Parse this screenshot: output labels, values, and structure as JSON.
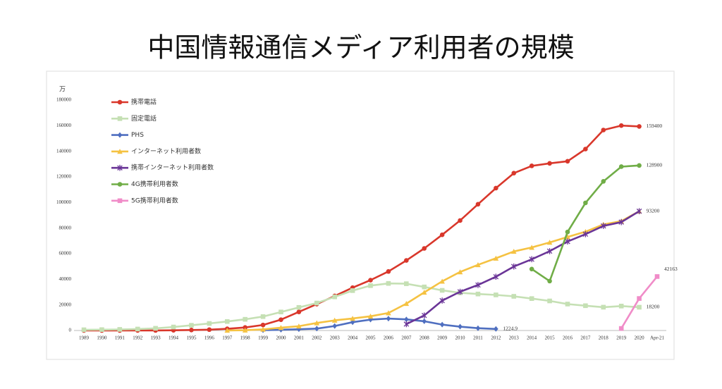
{
  "chart_data": {
    "type": "line",
    "title": "中国情報通信メディア利用者の規模",
    "y_unit": "万",
    "categories": [
      "1989",
      "1990",
      "1991",
      "1992",
      "1993",
      "1994",
      "1995",
      "1996",
      "1997",
      "1998",
      "1999",
      "2000",
      "2001",
      "2002",
      "2003",
      "2004",
      "2005",
      "2006",
      "2007",
      "2008",
      "2009",
      "2010",
      "2011",
      "2012",
      "2013",
      "2014",
      "2015",
      "2016",
      "2017",
      "2018",
      "2019",
      "2020",
      "Apr-21"
    ],
    "ylim": [
      0,
      180000
    ],
    "yticks": [
      0,
      20000,
      40000,
      60000,
      80000,
      100000,
      120000,
      140000,
      160000,
      180000
    ],
    "grid": false,
    "legend": "top-left",
    "series": [
      {
        "name": "携帯電話",
        "color": "#d9372b",
        "marker": "circle",
        "end_label": true,
        "values": [
          0,
          2,
          5,
          18,
          64,
          157,
          363,
          685,
          1323,
          2386,
          4330,
          8453,
          14522,
          20601,
          26995,
          33482,
          39341,
          46108,
          54731,
          64124,
          74738,
          85900,
          98625,
          111216,
          122911,
          128609,
          130574,
          132193,
          141749,
          156610,
          160100,
          159400,
          null
        ]
      },
      {
        "name": "固定電話",
        "color": "#c5e0b4",
        "marker": "square",
        "end_label": true,
        "values": [
          568,
          685,
          845,
          1147,
          1733,
          2729,
          4070,
          5495,
          7031,
          8742,
          10872,
          14483,
          18037,
          21442,
          26275,
          31176,
          35045,
          36779,
          36545,
          34036,
          31369,
          29438,
          28510,
          27815,
          26699,
          24943,
          23099,
          20662,
          19376,
          18225,
          19103,
          18200,
          null
        ]
      },
      {
        "name": "PHS",
        "color": "#4f6fc0",
        "marker": "diamond",
        "end_label": true,
        "values": [
          null,
          null,
          null,
          null,
          null,
          null,
          null,
          null,
          null,
          null,
          300,
          600,
          1000,
          1500,
          3500,
          6500,
          8500,
          9300,
          8700,
          7200,
          4600,
          3000,
          1800,
          1224.9,
          null,
          null,
          null,
          null,
          null,
          null,
          null,
          null,
          null
        ]
      },
      {
        "name": "インターネット利用者数",
        "color": "#f5c242",
        "marker": "triangle",
        "end_label": false,
        "values": [
          null,
          null,
          null,
          null,
          null,
          null,
          null,
          null,
          62,
          210,
          890,
          2250,
          3370,
          5910,
          7950,
          9400,
          11100,
          13700,
          21000,
          29800,
          38400,
          45730,
          51310,
          56400,
          61758,
          64875,
          68826,
          73125,
          77198,
          82851,
          85449,
          93200,
          null
        ]
      },
      {
        "name": "携帯インターネット利用者数",
        "color": "#6a3597",
        "marker": "star",
        "end_label": true,
        "values": [
          null,
          null,
          null,
          null,
          null,
          null,
          null,
          null,
          null,
          null,
          null,
          null,
          null,
          null,
          null,
          null,
          null,
          null,
          5000,
          11760,
          23344,
          30274,
          35558,
          41997,
          50006,
          55678,
          61981,
          69531,
          75265,
          81698,
          84681,
          93200,
          null
        ]
      },
      {
        "name": "4G携帯利用者数",
        "color": "#70ad47",
        "marker": "circle",
        "end_label": true,
        "values": [
          null,
          null,
          null,
          null,
          null,
          null,
          null,
          null,
          null,
          null,
          null,
          null,
          null,
          null,
          null,
          null,
          null,
          null,
          null,
          null,
          null,
          null,
          null,
          null,
          null,
          48000,
          38600,
          77000,
          99700,
          116500,
          128000,
          128900,
          null
        ]
      },
      {
        "name": "5G携帯利用者数",
        "color": "#f08cc8",
        "marker": "square",
        "end_label": true,
        "values": [
          null,
          null,
          null,
          null,
          null,
          null,
          null,
          null,
          null,
          null,
          null,
          null,
          null,
          null,
          null,
          null,
          null,
          null,
          null,
          null,
          null,
          null,
          null,
          null,
          null,
          null,
          null,
          null,
          null,
          null,
          1600,
          25000,
          42163
        ]
      }
    ]
  }
}
